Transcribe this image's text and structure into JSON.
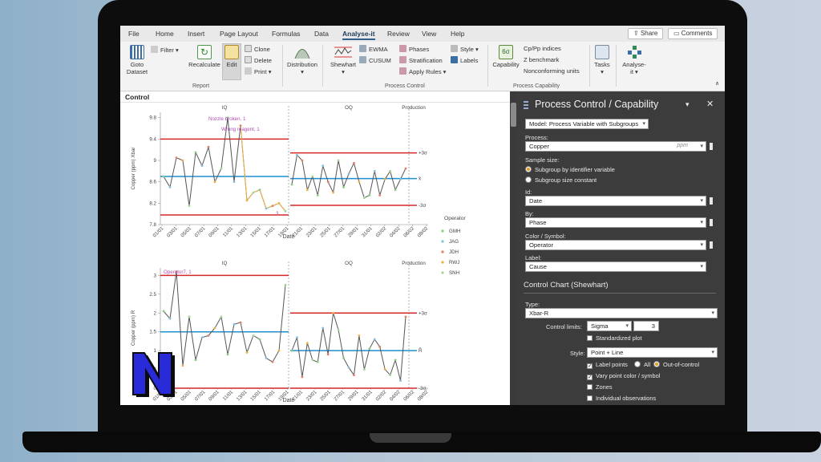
{
  "ribbon": {
    "tabs": [
      "File",
      "Home",
      "Insert",
      "Page Layout",
      "Formulas",
      "Data",
      "Analyse-it",
      "Review",
      "View",
      "Help"
    ],
    "active_tab": "Analyse-it",
    "share": "Share",
    "comments": "Comments",
    "goto_dataset": [
      "Goto",
      "Dataset"
    ],
    "filter": "Filter",
    "recalculate": "Recalculate",
    "edit": "Edit",
    "clone": "Clone",
    "delete": "Delete",
    "print": "Print",
    "distribution": "Distribution",
    "shewhart": "Shewhart",
    "ewma": "EWMA",
    "cusum": "CUSUM",
    "phases": "Phases",
    "stratification": "Stratification",
    "apply_rules": "Apply Rules",
    "style": "Style",
    "labels": "Labels",
    "capability": "Capability",
    "capability_badge": "6σ",
    "cp_pp": "Cp/Pp indices",
    "z_benchmark": "Z benchmark",
    "nonconforming": "Nonconforming units",
    "tasks": "Tasks",
    "analyse_it": [
      "Analyse-",
      "it"
    ],
    "group_report": "Report",
    "group_process_control": "Process Control",
    "group_process_capability": "Process Capability"
  },
  "work": {
    "title": "Control"
  },
  "chart_data": [
    {
      "type": "line",
      "title": "",
      "phases": [
        "IQ",
        "OQ",
        "Production"
      ],
      "ylabel": "Copper (ppm) Xbar",
      "xlabel": "Date",
      "ylim": [
        7.8,
        9.9
      ],
      "yticks": [
        7.8,
        8.2,
        8.6,
        9,
        9.4,
        9.8
      ],
      "x_tick_labels": [
        "01/01",
        "03/01",
        "05/01",
        "07/01",
        "09/01",
        "11/01",
        "13/01",
        "15/01",
        "17/01",
        "19/01",
        "21/01",
        "23/01",
        "25/01",
        "27/01",
        "29/01",
        "31/01",
        "02/02",
        "04/02",
        "06/02",
        "08/02"
      ],
      "phase1_limits": {
        "ucl": 9.4,
        "center": 8.7,
        "lcl": 7.98
      },
      "phase2_limits": {
        "ucl": 9.14,
        "center": 8.66,
        "lcl": 8.16
      },
      "limit_labels": [
        "+3σ",
        "x̄",
        "-3σ"
      ],
      "annotations": [
        "Nozzle broken, 1",
        "Wrong reagent, 1",
        "3"
      ],
      "legend": {
        "title": "Operator",
        "entries": [
          "GMH",
          "JAG",
          "JDH",
          "RWJ",
          "SNH"
        ]
      },
      "series": [
        {
          "phase": "IQ",
          "values": [
            8.7,
            8.5,
            9.05,
            9.0,
            8.15,
            9.15,
            8.9,
            9.25,
            8.6,
            8.85,
            9.8,
            8.6,
            9.65,
            8.25,
            8.4,
            8.45,
            8.1,
            8.15,
            8.2,
            8.05
          ]
        },
        {
          "phase": "OQ",
          "values": [
            8.55,
            9.1,
            9.0,
            8.45,
            8.7,
            8.35,
            8.9,
            8.6,
            8.4,
            9.0,
            8.5,
            8.75,
            8.95,
            8.6,
            8.3,
            8.35,
            8.8,
            8.35,
            8.65,
            8.8,
            8.45,
            8.65,
            8.85
          ]
        }
      ]
    },
    {
      "type": "line",
      "title": "",
      "phases": [
        "IQ",
        "OQ",
        "Production"
      ],
      "ylabel": "Copper (ppm) R",
      "xlabel": "Date",
      "ylim": [
        0,
        3.2
      ],
      "yticks": [
        0,
        0.5,
        1,
        1.5,
        2,
        2.5,
        3
      ],
      "x_tick_labels": [
        "01/01",
        "03/01",
        "05/01",
        "07/01",
        "09/01",
        "11/01",
        "13/01",
        "15/01",
        "17/01",
        "19/01",
        "21/01",
        "23/01",
        "25/01",
        "27/01",
        "29/01",
        "31/01",
        "02/02",
        "04/02",
        "06/02",
        "08/02"
      ],
      "phase1_limits": {
        "ucl": 3.0,
        "center": 1.5,
        "lcl": 0
      },
      "phase2_limits": {
        "ucl": 2.0,
        "center": 1.0,
        "lcl": 0
      },
      "limit_labels": [
        "+3σ",
        "R̄",
        "-3σ"
      ],
      "annotations": [
        "Operator7, 1"
      ],
      "series": [
        {
          "phase": "IQ",
          "values": [
            2.05,
            1.85,
            3.1,
            0.6,
            1.9,
            0.75,
            1.35,
            1.4,
            1.6,
            1.9,
            0.9,
            1.7,
            1.75,
            0.95,
            1.4,
            1.3,
            0.8,
            0.7,
            1.0,
            2.75
          ]
        },
        {
          "phase": "OQ",
          "values": [
            1.0,
            1.35,
            0.3,
            1.2,
            0.75,
            0.7,
            1.6,
            0.9,
            2.0,
            1.55,
            0.8,
            0.55,
            0.35,
            1.4,
            0.5,
            1.05,
            1.3,
            1.1,
            0.5,
            0.35,
            0.75,
            0.2,
            1.9
          ]
        }
      ]
    }
  ],
  "panel": {
    "title": "Process Control / Capability",
    "model": "Model: Process Variable with Subgroups",
    "process_label": "Process:",
    "process_value": "Copper",
    "process_unit": "ppm",
    "sample_size_label": "Sample size:",
    "sample_opt1": "Subgroup by identifier variable",
    "sample_opt2": "Subgroup size constant",
    "id_label": "Id:",
    "id_value": "Date",
    "by_label": "By:",
    "by_value": "Phase",
    "color_label": "Color / Symbol:",
    "color_value": "Operator",
    "label_label": "Label:",
    "label_value": "Cause",
    "section": "Control Chart (Shewhart)",
    "type_label": "Type:",
    "type_value": "Xbar-R",
    "limits_label": "Control limits:",
    "limits_value": "Sigma",
    "limits_num": "3",
    "standardized": "Standardized plot",
    "style_label": "Style:",
    "style_value": "Point + Line",
    "label_points": "Label points",
    "all": "All",
    "out_of_control": "Out-of-control",
    "vary_color": "Vary point color / symbol",
    "zones": "Zones",
    "individual": "Individual observations"
  },
  "colors": {
    "ucl": "#d62728",
    "center": "#1f8fcf",
    "series": "#555555",
    "panel_bg": "#3c3c3c",
    "gmh": "#7fcf7f",
    "jag": "#7fbfdf",
    "jdh": "#e08060",
    "rwj": "#f0b040",
    "snh": "#a0d890"
  }
}
